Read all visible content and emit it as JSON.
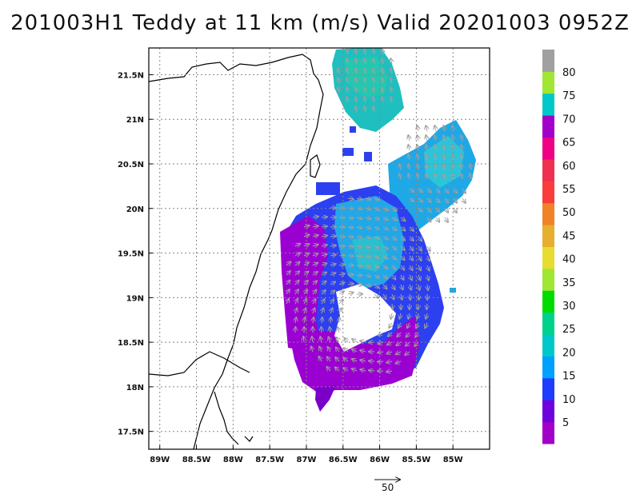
{
  "title": "201003H1 Teddy at 11 km (m/s) Valid 20201003 0952Z",
  "map": {
    "lon_range": [
      -89.15,
      -84.5
    ],
    "lat_range": [
      17.3,
      21.8
    ],
    "lon_ticks": [
      {
        "value": -89.0,
        "label": "89W"
      },
      {
        "value": -88.5,
        "label": "88.5W"
      },
      {
        "value": -88.0,
        "label": "88W"
      },
      {
        "value": -87.5,
        "label": "87.5W"
      },
      {
        "value": -87.0,
        "label": "87W"
      },
      {
        "value": -86.5,
        "label": "86.5W"
      },
      {
        "value": -86.0,
        "label": "86W"
      },
      {
        "value": -85.5,
        "label": "85.5W"
      },
      {
        "value": -85.0,
        "label": "85W"
      }
    ],
    "lat_ticks": [
      {
        "value": 21.5,
        "label": "21.5N"
      },
      {
        "value": 21.0,
        "label": "21N"
      },
      {
        "value": 20.5,
        "label": "20.5N"
      },
      {
        "value": 20.0,
        "label": "20N"
      },
      {
        "value": 19.5,
        "label": "19.5N"
      },
      {
        "value": 19.0,
        "label": "19N"
      },
      {
        "value": 18.5,
        "label": "18.5N"
      },
      {
        "value": 18.0,
        "label": "18N"
      },
      {
        "value": 17.5,
        "label": "17.5N"
      }
    ],
    "grid": true,
    "wind_barbs": "gray arrows"
  },
  "colorbar": {
    "labels": [
      "5",
      "10",
      "15",
      "20",
      "25",
      "30",
      "35",
      "40",
      "45",
      "50",
      "55",
      "60",
      "65",
      "70",
      "75",
      "80"
    ],
    "colors": [
      "#a000c8",
      "#6e00dc",
      "#1e3cff",
      "#00a0ff",
      "#00c8c8",
      "#00d28c",
      "#00dc00",
      "#a0e632",
      "#e6dc32",
      "#e6af2d",
      "#f08228",
      "#fa3c3c",
      "#f03050",
      "#f00082",
      "#a000c8",
      "#00c8c8",
      "#a0e632",
      "#a0a0a0"
    ]
  },
  "reference_vector": {
    "label": "50"
  },
  "chart_data": {
    "type": "heatmap",
    "title": "201003H1 Teddy at 11 km (m/s) Valid 20201003 0952Z",
    "xlabel": "",
    "ylabel": "",
    "xlim": [
      -89.15,
      -84.5
    ],
    "ylim": [
      17.3,
      21.8
    ],
    "colorbar_ticks": [
      5,
      10,
      15,
      20,
      25,
      30,
      35,
      40,
      45,
      50,
      55,
      60,
      65,
      70,
      75,
      80
    ],
    "units": "m/s"
  }
}
